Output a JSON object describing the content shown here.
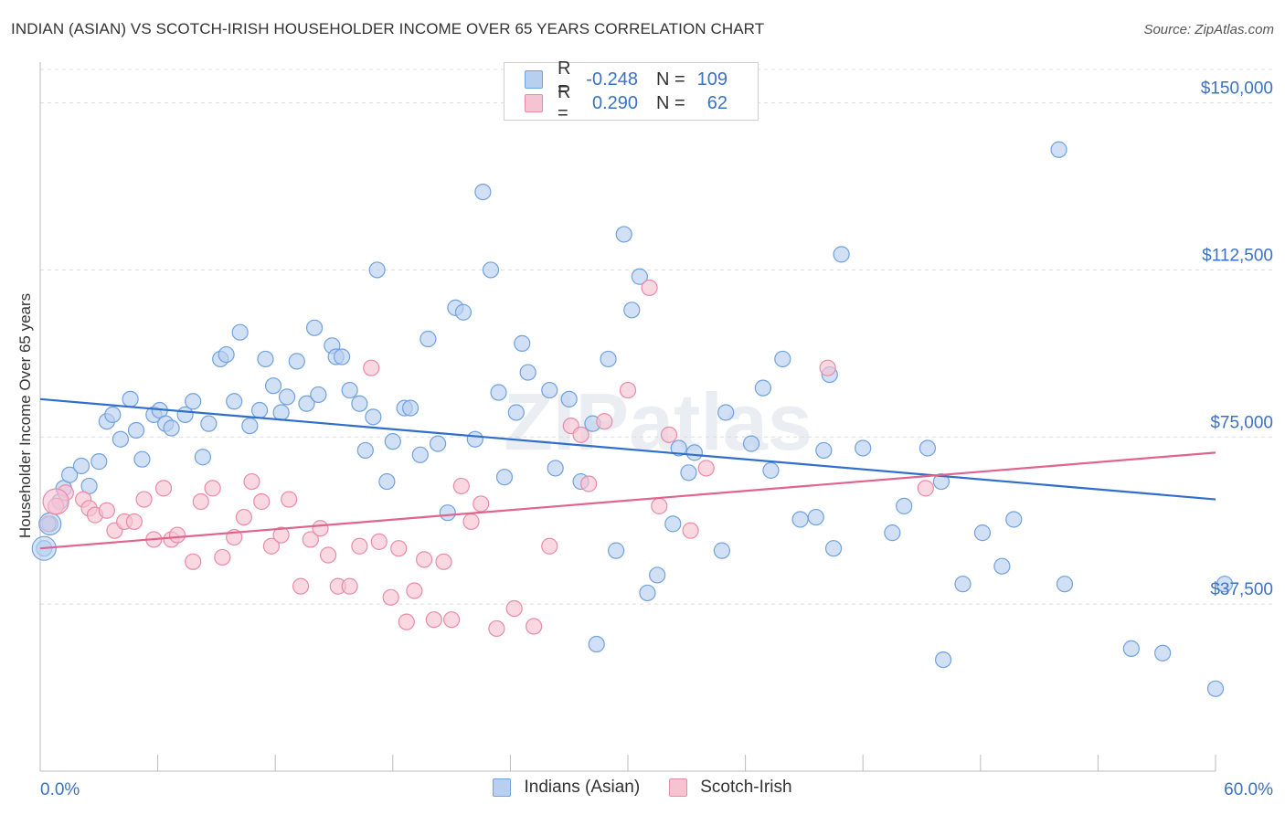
{
  "title": "INDIAN (ASIAN) VS SCOTCH-IRISH HOUSEHOLDER INCOME OVER 65 YEARS CORRELATION CHART",
  "source": "Source: ZipAtlas.com",
  "watermark": "ZIPatlas",
  "colors": {
    "blue": "#6fa2de",
    "blue_fill": "#b8d0f0",
    "blue_line": "#2f6fcb",
    "pink": "#e98aa8",
    "pink_fill": "#f6c3d3",
    "pink_line": "#e0648e",
    "tick_text": "#3a72c4"
  },
  "legend": {
    "rows": [
      {
        "r_label": "R =",
        "r_value": "-0.248",
        "n_label": "N =",
        "n_value": "109"
      },
      {
        "r_label": "R =",
        "r_value": "0.290",
        "n_label": "N =",
        "n_value": "62"
      }
    ]
  },
  "chart_data": {
    "type": "scatter",
    "title": "INDIAN (ASIAN) VS SCOTCH-IRISH HOUSEHOLDER INCOME OVER 65 YEARS CORRELATION CHART",
    "xlabel": "",
    "ylabel": "Householder Income Over 65 years",
    "xlim": [
      0,
      60
    ],
    "ylim": [
      0,
      157500
    ],
    "x_tick_labels": [
      "0.0%",
      "60.0%"
    ],
    "y_ticks": [
      37500,
      75000,
      112500,
      150000
    ],
    "y_tick_labels": [
      "$37,500",
      "$75,000",
      "$112,500",
      "$150,000"
    ],
    "grid": true,
    "legend_position": "top-center",
    "series": [
      {
        "name": "Indians (Asian)",
        "color": "#6fa2de",
        "trend": {
          "x": [
            0,
            60
          ],
          "y": [
            83500,
            61000
          ]
        },
        "points": [
          [
            0.2,
            50000
          ],
          [
            0.5,
            55500
          ],
          [
            1.0,
            60500
          ],
          [
            1.2,
            63500
          ],
          [
            1.5,
            66500
          ],
          [
            2.1,
            68500
          ],
          [
            2.5,
            64000
          ],
          [
            3.0,
            69500
          ],
          [
            3.4,
            78500
          ],
          [
            3.7,
            80000
          ],
          [
            4.1,
            74500
          ],
          [
            4.6,
            83500
          ],
          [
            4.9,
            76500
          ],
          [
            5.2,
            70000
          ],
          [
            5.8,
            80000
          ],
          [
            6.1,
            81000
          ],
          [
            6.4,
            78000
          ],
          [
            6.7,
            77000
          ],
          [
            7.4,
            80000
          ],
          [
            7.8,
            83000
          ],
          [
            8.3,
            70500
          ],
          [
            8.6,
            78000
          ],
          [
            9.2,
            92500
          ],
          [
            9.5,
            93500
          ],
          [
            9.9,
            83000
          ],
          [
            10.2,
            98500
          ],
          [
            10.7,
            77500
          ],
          [
            11.2,
            81000
          ],
          [
            11.5,
            92500
          ],
          [
            11.9,
            86500
          ],
          [
            12.3,
            80500
          ],
          [
            12.6,
            84000
          ],
          [
            13.1,
            92000
          ],
          [
            13.6,
            82500
          ],
          [
            14.0,
            99500
          ],
          [
            14.2,
            84500
          ],
          [
            14.9,
            95500
          ],
          [
            15.1,
            93000
          ],
          [
            15.4,
            93000
          ],
          [
            15.8,
            85500
          ],
          [
            16.3,
            82500
          ],
          [
            16.6,
            72000
          ],
          [
            17.0,
            79500
          ],
          [
            17.2,
            112500
          ],
          [
            17.7,
            65000
          ],
          [
            18.0,
            74000
          ],
          [
            18.6,
            81500
          ],
          [
            18.9,
            81500
          ],
          [
            19.4,
            71000
          ],
          [
            19.8,
            97000
          ],
          [
            20.3,
            73500
          ],
          [
            20.8,
            58000
          ],
          [
            21.2,
            104000
          ],
          [
            21.6,
            103000
          ],
          [
            22.2,
            74500
          ],
          [
            22.6,
            130000
          ],
          [
            23.0,
            112500
          ],
          [
            23.4,
            85000
          ],
          [
            23.7,
            66000
          ],
          [
            24.3,
            80500
          ],
          [
            24.6,
            96000
          ],
          [
            24.9,
            89500
          ],
          [
            26.0,
            85500
          ],
          [
            26.3,
            68000
          ],
          [
            27.0,
            83500
          ],
          [
            27.6,
            65000
          ],
          [
            28.2,
            78000
          ],
          [
            28.4,
            28500
          ],
          [
            29.0,
            92500
          ],
          [
            29.4,
            49500
          ],
          [
            29.8,
            120500
          ],
          [
            30.2,
            103500
          ],
          [
            30.6,
            111000
          ],
          [
            31.0,
            40000
          ],
          [
            31.5,
            44000
          ],
          [
            32.3,
            55500
          ],
          [
            32.6,
            72500
          ],
          [
            33.1,
            67000
          ],
          [
            33.4,
            71500
          ],
          [
            34.8,
            49500
          ],
          [
            35.0,
            80500
          ],
          [
            36.3,
            73500
          ],
          [
            36.9,
            86000
          ],
          [
            37.3,
            67500
          ],
          [
            37.9,
            92500
          ],
          [
            38.8,
            56500
          ],
          [
            39.6,
            57000
          ],
          [
            40.0,
            72000
          ],
          [
            40.3,
            89000
          ],
          [
            40.5,
            50000
          ],
          [
            42.0,
            72500
          ],
          [
            40.9,
            116000
          ],
          [
            43.5,
            53500
          ],
          [
            44.1,
            59500
          ],
          [
            45.3,
            72500
          ],
          [
            46.0,
            65000
          ],
          [
            46.1,
            25000
          ],
          [
            47.1,
            42000
          ],
          [
            48.1,
            53500
          ],
          [
            49.1,
            46000
          ],
          [
            49.7,
            56500
          ],
          [
            52.0,
            139500
          ],
          [
            52.3,
            42000
          ],
          [
            55.7,
            27500
          ],
          [
            57.3,
            26500
          ],
          [
            60.0,
            18500
          ],
          [
            61.7,
            42000
          ]
        ]
      },
      {
        "name": "Scotch-Irish",
        "color": "#e98aa8",
        "trend": {
          "x": [
            0,
            60
          ],
          "y": [
            50000,
            71500
          ]
        },
        "points": [
          [
            0.4,
            55500
          ],
          [
            0.8,
            59500
          ],
          [
            1.3,
            62500
          ],
          [
            2.2,
            61000
          ],
          [
            2.5,
            59000
          ],
          [
            2.8,
            57500
          ],
          [
            3.4,
            58500
          ],
          [
            3.8,
            54000
          ],
          [
            4.3,
            56000
          ],
          [
            4.8,
            56000
          ],
          [
            5.3,
            61000
          ],
          [
            5.8,
            52000
          ],
          [
            6.3,
            63500
          ],
          [
            6.7,
            52000
          ],
          [
            7.0,
            53000
          ],
          [
            7.8,
            47000
          ],
          [
            8.2,
            60500
          ],
          [
            8.8,
            63500
          ],
          [
            9.3,
            48000
          ],
          [
            9.9,
            52500
          ],
          [
            10.4,
            57000
          ],
          [
            10.8,
            65000
          ],
          [
            11.3,
            60500
          ],
          [
            11.8,
            50500
          ],
          [
            12.3,
            53000
          ],
          [
            12.7,
            61000
          ],
          [
            13.3,
            41500
          ],
          [
            13.8,
            52000
          ],
          [
            14.3,
            54500
          ],
          [
            14.7,
            48500
          ],
          [
            15.2,
            41500
          ],
          [
            15.8,
            41500
          ],
          [
            16.3,
            50500
          ],
          [
            16.9,
            90500
          ],
          [
            17.3,
            51500
          ],
          [
            17.9,
            39000
          ],
          [
            18.3,
            50000
          ],
          [
            18.7,
            33500
          ],
          [
            19.1,
            40500
          ],
          [
            19.6,
            47500
          ],
          [
            20.1,
            34000
          ],
          [
            20.6,
            47000
          ],
          [
            21.0,
            34000
          ],
          [
            21.5,
            64000
          ],
          [
            22.0,
            56000
          ],
          [
            22.5,
            60000
          ],
          [
            23.3,
            32000
          ],
          [
            24.2,
            36500
          ],
          [
            25.2,
            32500
          ],
          [
            26.0,
            50500
          ],
          [
            27.1,
            77500
          ],
          [
            27.6,
            75500
          ],
          [
            28.0,
            64500
          ],
          [
            28.8,
            78500
          ],
          [
            30.0,
            85500
          ],
          [
            31.1,
            108500
          ],
          [
            31.6,
            59500
          ],
          [
            32.1,
            75500
          ],
          [
            33.2,
            54000
          ],
          [
            34.0,
            68000
          ],
          [
            40.2,
            90500
          ],
          [
            45.2,
            63500
          ]
        ]
      }
    ]
  }
}
